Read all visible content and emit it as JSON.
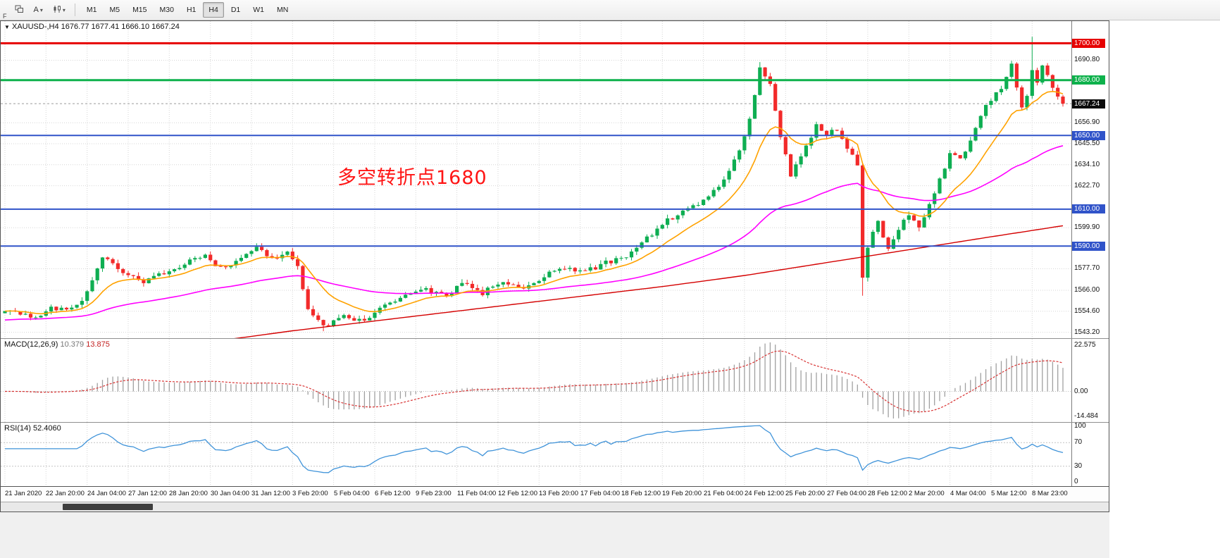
{
  "toolbar": {
    "tools": [
      {
        "name": "windows-icon"
      },
      {
        "name": "annotate-tool",
        "label": "A",
        "caret": "▾"
      },
      {
        "name": "chart-type-tool",
        "caret": "▾"
      }
    ],
    "f_label": "F",
    "timeframes": [
      "M1",
      "M5",
      "M15",
      "M30",
      "H1",
      "H4",
      "D1",
      "W1",
      "MN"
    ],
    "active_timeframe": "H4"
  },
  "header": {
    "dropdown_icon": "▼",
    "symbol": "XAUUSD-,H4",
    "ohlc": "1676.77 1677.41 1666.10 1667.24"
  },
  "annotation": {
    "text": "多空转折点1680",
    "color": "#ff1515"
  },
  "axis": {
    "main_labels": [
      1690.8,
      1656.9,
      1645.5,
      1634.1,
      1622.7,
      1599.9,
      1577.7,
      1566.0,
      1554.6,
      1543.2
    ],
    "current_price": {
      "value": 1667.24,
      "label": "1667.24",
      "bg": "#0a0a0a"
    },
    "macd_labels": [
      {
        "text": "22.575",
        "pos": "top"
      },
      {
        "text": "0.00",
        "pos": "zero"
      },
      {
        "text": "-14.484",
        "pos": "bottom"
      }
    ],
    "rsi_labels": [
      {
        "text": "100",
        "value": 100
      },
      {
        "text": "70",
        "value": 70
      },
      {
        "text": "30",
        "value": 30
      },
      {
        "text": "0",
        "value": 0
      }
    ]
  },
  "hlines": [
    {
      "price": 1700.0,
      "label": "1700.00",
      "color": "#e60000",
      "width": 3
    },
    {
      "price": 1680.0,
      "label": "1680.00",
      "color": "#0db14b",
      "width": 3
    },
    {
      "price": 1650.0,
      "label": "1650.00",
      "color": "#3053c9",
      "width": 2
    },
    {
      "price": 1610.0,
      "label": "1610.00",
      "color": "#3053c9",
      "width": 2
    },
    {
      "price": 1590.0,
      "label": "1590.00",
      "color": "#3053c9",
      "width": 2
    }
  ],
  "macd": {
    "label": "MACD(12,26,9)",
    "value_main": "10.379",
    "value_signal": "13.875",
    "fast": 12,
    "slow": 26,
    "signal": 9
  },
  "rsi": {
    "label": "RSI(14)",
    "value": "52.4060",
    "period": 14,
    "levels": [
      70,
      30
    ]
  },
  "time_labels": [
    "21 Jan 2020",
    "22 Jan 20:00",
    "24 Jan 04:00",
    "27 Jan 12:00",
    "28 Jan 20:00",
    "30 Jan 04:00",
    "31 Jan 12:00",
    "3 Feb 20:00",
    "5 Feb 04:00",
    "6 Feb 12:00",
    "9 Feb 23:00",
    "11 Feb 04:00",
    "12 Feb 12:00",
    "13 Feb 20:00",
    "17 Feb 04:00",
    "18 Feb 12:00",
    "19 Feb 20:00",
    "21 Feb 04:00",
    "24 Feb 12:00",
    "25 Feb 20:00",
    "27 Feb 04:00",
    "28 Feb 12:00",
    "2 Mar 20:00",
    "4 Mar 04:00",
    "5 Mar 12:00",
    "8 Mar 23:00"
  ],
  "chart_data": {
    "type": "candlestick",
    "symbol": "XAUUSD",
    "timeframe": "H4",
    "bar_count": 207,
    "bars_per_label": 8,
    "price_scale": {
      "min": 1540,
      "max": 1712
    },
    "noise": 1.3,
    "close_anchors": [
      [
        0,
        1556
      ],
      [
        3,
        1553.5
      ],
      [
        6,
        1551.5
      ],
      [
        9,
        1557
      ],
      [
        12,
        1555
      ],
      [
        15,
        1561
      ],
      [
        19,
        1584
      ],
      [
        21,
        1580
      ],
      [
        23,
        1576
      ],
      [
        27,
        1570.5
      ],
      [
        31,
        1575
      ],
      [
        35,
        1580
      ],
      [
        39,
        1586
      ],
      [
        41,
        1580
      ],
      [
        43,
        1578
      ],
      [
        46,
        1584
      ],
      [
        49,
        1589
      ],
      [
        52,
        1583
      ],
      [
        55,
        1586.5
      ],
      [
        57,
        1578
      ],
      [
        59,
        1556
      ],
      [
        61,
        1549
      ],
      [
        63,
        1547
      ],
      [
        66,
        1552.5
      ],
      [
        68,
        1549.5
      ],
      [
        70,
        1550
      ],
      [
        74,
        1558
      ],
      [
        78,
        1562.5
      ],
      [
        82,
        1566
      ],
      [
        86,
        1563
      ],
      [
        89,
        1569.5
      ],
      [
        93,
        1564.5
      ],
      [
        97,
        1571
      ],
      [
        101,
        1567
      ],
      [
        105,
        1574
      ],
      [
        109,
        1578
      ],
      [
        113,
        1576
      ],
      [
        117,
        1581
      ],
      [
        121,
        1584.5
      ],
      [
        125,
        1594
      ],
      [
        128,
        1602.5
      ],
      [
        132,
        1608
      ],
      [
        136,
        1614
      ],
      [
        140,
        1626
      ],
      [
        143,
        1641
      ],
      [
        145,
        1658
      ],
      [
        147,
        1686
      ],
      [
        149,
        1677
      ],
      [
        151,
        1650
      ],
      [
        153,
        1628
      ],
      [
        156,
        1644
      ],
      [
        158,
        1656
      ],
      [
        160,
        1650
      ],
      [
        162,
        1653.5
      ],
      [
        164,
        1643
      ],
      [
        166,
        1634
      ],
      [
        167,
        1572
      ],
      [
        168,
        1590
      ],
      [
        170,
        1603
      ],
      [
        172,
        1588
      ],
      [
        174,
        1600
      ],
      [
        176,
        1607
      ],
      [
        178,
        1601
      ],
      [
        180,
        1612
      ],
      [
        182,
        1626
      ],
      [
        184,
        1640
      ],
      [
        186,
        1636.5
      ],
      [
        188,
        1648
      ],
      [
        190,
        1661
      ],
      [
        192,
        1670
      ],
      [
        194,
        1676
      ],
      [
        196,
        1690
      ],
      [
        198,
        1664
      ],
      [
        199,
        1672
      ],
      [
        200,
        1685
      ],
      [
        201,
        1678
      ],
      [
        202,
        1688
      ],
      [
        203,
        1682
      ],
      [
        204,
        1675
      ],
      [
        205,
        1671
      ],
      [
        206,
        1667.24
      ]
    ],
    "wick_overrides": {
      "49": {
        "high": 1591.5
      },
      "62": {
        "low": 1543.8
      },
      "147": {
        "high": 1689.8
      },
      "167": {
        "low": 1563.0
      },
      "200": {
        "high": 1703.5
      }
    },
    "ma": {
      "fast_period": 13,
      "mid_period": 60,
      "slow_anchors": [
        [
          0,
          1527
        ],
        [
          40,
          1538
        ],
        [
          56,
          1544
        ],
        [
          80,
          1552
        ],
        [
          104,
          1560
        ],
        [
          128,
          1568
        ],
        [
          144,
          1574
        ],
        [
          160,
          1581
        ],
        [
          176,
          1588
        ],
        [
          192,
          1595
        ],
        [
          206,
          1601
        ]
      ]
    },
    "colors": {
      "up": "#0eae52",
      "down": "#f22a2a",
      "ma_fast": "#ffa200",
      "ma_mid": "#ff00ff",
      "ma_slow": "#d40000",
      "macd_hist": "#a0a0a0",
      "macd_signal": "#d83434",
      "rsi_line": "#3f93d9",
      "grid": "#d6d6d6"
    }
  }
}
